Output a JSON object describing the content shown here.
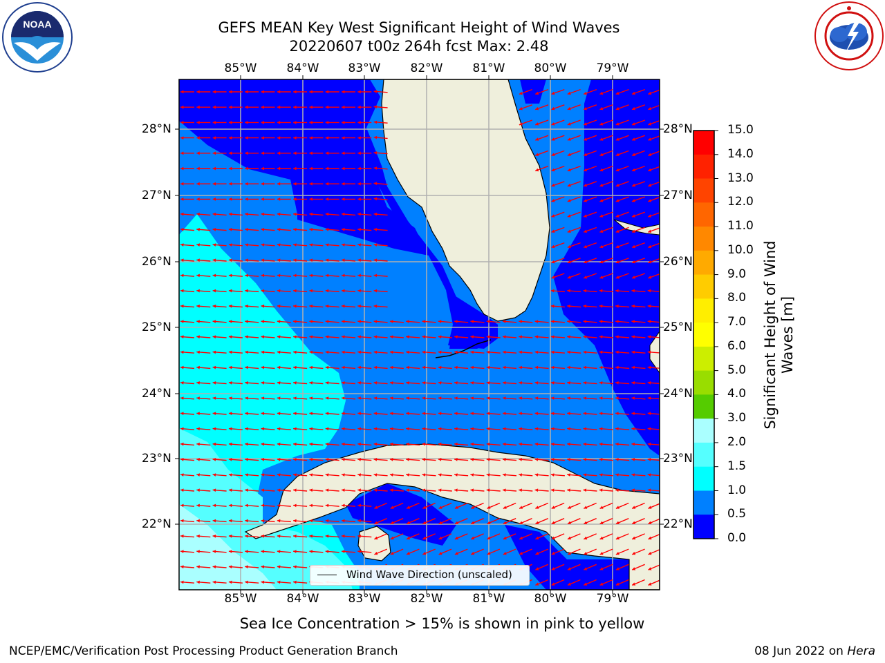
{
  "title": {
    "line1": "GEFS MEAN Key West Significant Height of Wind Waves",
    "line2": "20220607 t00z 264h fcst   Max: 2.48"
  },
  "map": {
    "lon_labels": [
      "85°W",
      "84°W",
      "83°W",
      "82°W",
      "81°W",
      "80°W",
      "79°W"
    ],
    "lat_labels": [
      "28°N",
      "27°N",
      "26°N",
      "25°N",
      "24°N",
      "23°N",
      "22°N"
    ],
    "legend_label": "Wind Wave Direction (unscaled)",
    "arrow_color": "#ff0000",
    "land_color": "#efefdc"
  },
  "colorbar": {
    "label_line1": "Significant Height of Wind",
    "label_line2": "Waves [m]",
    "ticks": [
      "15.0",
      "14.0",
      "13.0",
      "12.0",
      "11.0",
      "10.0",
      "9.0",
      "8.0",
      "7.0",
      "6.0",
      "5.0",
      "4.0",
      "3.0",
      "2.0",
      "1.5",
      "1.0",
      "0.5",
      "0.0"
    ],
    "colors_top_to_bottom": [
      "#ff0000",
      "#ff2200",
      "#ff4400",
      "#ff6600",
      "#ff8800",
      "#ffaa00",
      "#ffcc00",
      "#ffee00",
      "#ffff00",
      "#ccee00",
      "#99dd00",
      "#55cc00",
      "#00dd00",
      "#00bb00",
      "#55ff77",
      "#aaffff",
      "#55ffff",
      "#00ffff",
      "#0080ff",
      "#0000ff"
    ]
  },
  "note": "Sea Ice Concentration > 15% is shown in pink to yellow",
  "footer": {
    "left": "NCEP/EMC/Verification Post Processing Product Generation Branch",
    "right_date": "08 Jun 2022 on ",
    "right_machine": "Hera"
  },
  "logos": {
    "noaa": "NOAA",
    "noaa_ring": "NATIONAL OCEANIC AND ATMOSPHERIC ADMINISTRATION",
    "nws_ring": "NATIONAL WEATHER SERVICE"
  }
}
